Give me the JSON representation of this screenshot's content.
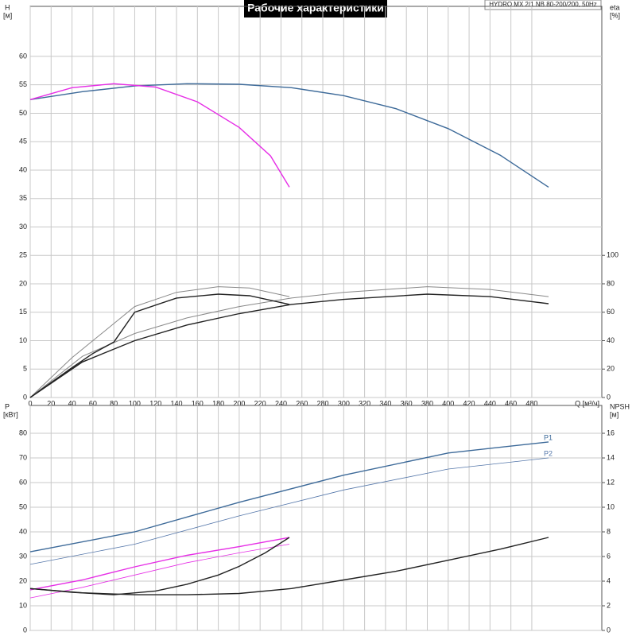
{
  "title": "Рабочие характеристики",
  "model": "HYDRO MX 2/1 NB 80-200/200, 50Hz",
  "chart_data": [
    {
      "type": "line",
      "y_label": "H",
      "y_unit": "[м]",
      "y2_label": "eta",
      "y2_unit": "[%]",
      "x_label": "Q [м³/ч]",
      "xlim": [
        0,
        547
      ],
      "xticks": [
        0,
        20,
        40,
        60,
        80,
        100,
        120,
        140,
        160,
        180,
        200,
        220,
        240,
        260,
        280,
        300,
        320,
        340,
        360,
        380,
        400,
        420,
        440,
        460,
        480
      ],
      "ylim": [
        0,
        68.8
      ],
      "yticks": [
        0,
        5,
        10,
        15,
        20,
        25,
        30,
        35,
        40,
        45,
        50,
        55,
        60
      ],
      "y2lim": [
        0,
        275.2
      ],
      "y2ticks": [
        0,
        20,
        40,
        60,
        80,
        100
      ],
      "grid": true,
      "x_tick_labels": true,
      "series": [
        {
          "color": "#3d6a99",
          "line_width": 1.4,
          "x": [
            0,
            50,
            100,
            150,
            200,
            250,
            300,
            350,
            400,
            450,
            496
          ],
          "values": [
            52.4,
            53.8,
            54.8,
            55.2,
            55.1,
            54.5,
            53.1,
            50.8,
            47.3,
            42.6,
            37
          ]
        },
        {
          "color": "#e62ee6",
          "line_width": 1.4,
          "x": [
            0,
            40,
            80,
            120,
            160,
            200,
            230,
            248
          ],
          "values": [
            52.4,
            54.5,
            55.2,
            54.6,
            52,
            47.5,
            42.5,
            37
          ]
        },
        {
          "color": "#888888",
          "line_width": 1,
          "axis": "y2",
          "x": [
            0,
            50,
            100,
            150,
            200,
            250,
            300,
            380,
            440,
            496
          ],
          "values": [
            0,
            29,
            45,
            56,
            64,
            70,
            74,
            78,
            76,
            71
          ]
        },
        {
          "color": "#222222",
          "line_width": 1.4,
          "axis": "y2",
          "x": [
            0,
            50,
            100,
            150,
            200,
            250,
            300,
            380,
            440,
            496
          ],
          "values": [
            0,
            25,
            40,
            51,
            59,
            65.5,
            69,
            72.7,
            71,
            66
          ]
        },
        {
          "color": "#888888",
          "line_width": 1,
          "axis": "y2",
          "x": [
            0,
            40,
            80,
            100,
            140,
            180,
            210,
            248
          ],
          "values": [
            0,
            28,
            52,
            64,
            74,
            78,
            77,
            71
          ]
        },
        {
          "color": "#222222",
          "line_width": 1.4,
          "axis": "y2",
          "x": [
            0,
            40,
            60,
            80,
            100,
            140,
            180,
            210,
            248
          ],
          "values": [
            0,
            21,
            31,
            39,
            60,
            70,
            72.7,
            71.6,
            65.5
          ]
        }
      ]
    },
    {
      "type": "line",
      "y_label": "P",
      "y_unit": "[кВт]",
      "y2_label": "NPSH",
      "y2_unit": "[м]",
      "xlim": [
        0,
        547
      ],
      "xticks": [
        0,
        20,
        40,
        60,
        80,
        100,
        120,
        140,
        160,
        180,
        200,
        220,
        240,
        260,
        280,
        300,
        320,
        340,
        360,
        380,
        400,
        420,
        440,
        460,
        480
      ],
      "ylim": [
        0,
        91.3
      ],
      "yticks": [
        0,
        10,
        20,
        30,
        40,
        50,
        60,
        70,
        80
      ],
      "y2lim": [
        0,
        18.26
      ],
      "y2ticks": [
        0,
        2,
        4,
        6,
        8,
        10,
        12,
        14,
        16
      ],
      "grid": true,
      "x_tick_labels": false,
      "series": [
        {
          "name": "P1",
          "color": "#3d6a99",
          "line_width": 1.4,
          "x": [
            0,
            100,
            200,
            300,
            400,
            496
          ],
          "values": [
            31.9,
            40,
            52,
            63,
            72,
            76.5
          ]
        },
        {
          "name": "P2",
          "color": "#5577aa",
          "line_width": 0.8,
          "x": [
            0,
            100,
            200,
            300,
            400,
            496
          ],
          "values": [
            26.8,
            35,
            46.5,
            57,
            65.5,
            70
          ]
        },
        {
          "color": "#e62ee6",
          "line_width": 1.4,
          "x": [
            0,
            50,
            100,
            150,
            200,
            248
          ],
          "values": [
            16.5,
            20.5,
            25.8,
            30.5,
            34,
            37.7
          ]
        },
        {
          "color": "#e62ee6",
          "line_width": 0.8,
          "x": [
            0,
            50,
            100,
            150,
            200,
            248
          ],
          "values": [
            13.2,
            17.5,
            22.5,
            27.5,
            31.5,
            35
          ]
        },
        {
          "color": "#222222",
          "line_width": 1.4,
          "axis": "y2",
          "x": [
            0,
            50,
            100,
            150,
            200,
            250,
            300,
            350,
            400,
            450,
            496
          ],
          "values": [
            3.4,
            3.05,
            2.9,
            2.9,
            3,
            3.4,
            4.1,
            4.8,
            5.7,
            6.6,
            7.55
          ]
        },
        {
          "color": "#222222",
          "line_width": 1.4,
          "axis": "y2",
          "x": [
            0,
            40,
            80,
            120,
            150,
            180,
            200,
            225,
            248
          ],
          "values": [
            3.4,
            3.1,
            2.9,
            3.2,
            3.75,
            4.5,
            5.2,
            6.3,
            7.55
          ]
        }
      ]
    }
  ]
}
